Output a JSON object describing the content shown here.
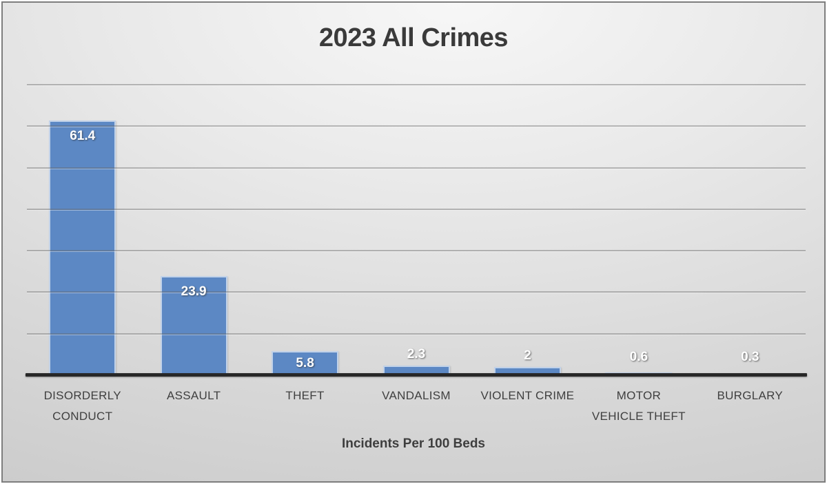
{
  "chart_data": {
    "type": "bar",
    "title": "2023 All Crimes",
    "xlabel": "Incidents Per 100 Beds",
    "ylabel": "",
    "categories": [
      "DISORDERLY CONDUCT",
      "ASSAULT",
      "THEFT",
      "VANDALISM",
      "VIOLENT CRIME",
      "MOTOR VEHICLE THEFT",
      "BURGLARY"
    ],
    "tick_labels": [
      "DISORDERLY\nCONDUCT",
      "ASSAULT",
      "THEFT",
      "VANDALISM",
      "VIOLENT CRIME",
      "MOTOR\nVEHICLE THEFT",
      "BURGLARY"
    ],
    "values": [
      61.4,
      23.9,
      5.8,
      2.3,
      2,
      0.6,
      0.3
    ],
    "data_labels": [
      "61.4",
      "23.9",
      "5.8",
      "2.3",
      "2",
      "0.6",
      "0.3"
    ],
    "ylim": [
      0,
      70
    ],
    "gridline_step": 10,
    "grid": true,
    "legend": false,
    "data_label_position": "inside-end-or-outside",
    "colors": {
      "bar_fill": "#5c88c4",
      "bar_border": "#cdd9eb",
      "gridline_gray": "#9e9e9e",
      "axis_line": "#282828",
      "data_label_text": "#ffffff",
      "text": "#3f3f3f",
      "background_top": "#f7f7f7",
      "background_bottom": "#c8c8c8"
    }
  }
}
